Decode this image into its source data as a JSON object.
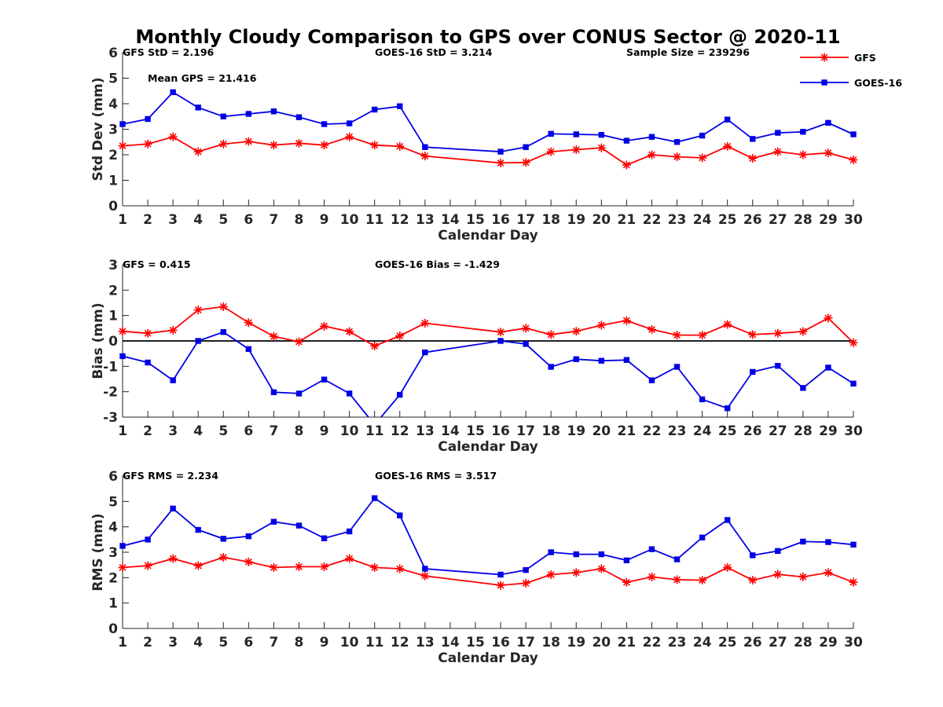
{
  "title": "Monthly Cloudy Comparison to GPS over CONUS Sector @ 2020-11",
  "legend": {
    "placement": "top-right",
    "entries": [
      {
        "name": "GFS",
        "color": "#ff0000",
        "marker": "asterisk"
      },
      {
        "name": "GOES-16",
        "color": "#0000e6",
        "marker": "square"
      }
    ]
  },
  "chart_data": [
    {
      "type": "line",
      "xlabel": "Calendar Day",
      "ylabel": "Std Dev (mm)",
      "xlim": [
        1,
        30
      ],
      "ylim": [
        0,
        6
      ],
      "yticks": [
        0,
        1,
        2,
        3,
        4,
        5,
        6
      ],
      "grid": false,
      "zero_line": false,
      "annotations": [
        "GFS StD = 2.196",
        "GOES-16 StD = 3.214",
        "Sample Size = 239296",
        "Mean GPS = 21.416"
      ],
      "x": [
        1,
        2,
        3,
        4,
        5,
        6,
        7,
        8,
        9,
        10,
        11,
        12,
        13,
        16,
        17,
        18,
        19,
        20,
        21,
        22,
        23,
        24,
        25,
        26,
        27,
        28,
        29,
        30
      ],
      "series": [
        {
          "name": "GFS",
          "values": [
            2.35,
            2.42,
            2.7,
            2.12,
            2.42,
            2.52,
            2.38,
            2.45,
            2.38,
            2.7,
            2.38,
            2.33,
            1.95,
            1.68,
            1.7,
            2.12,
            2.2,
            2.27,
            1.6,
            2.0,
            1.92,
            1.88,
            2.33,
            1.86,
            2.12,
            2.0,
            2.07,
            1.8
          ]
        },
        {
          "name": "GOES-16",
          "values": [
            3.2,
            3.4,
            4.45,
            3.85,
            3.5,
            3.6,
            3.7,
            3.47,
            3.2,
            3.23,
            3.77,
            3.9,
            2.3,
            2.12,
            2.3,
            2.82,
            2.8,
            2.78,
            2.55,
            2.7,
            2.5,
            2.75,
            3.38,
            2.62,
            2.86,
            2.9,
            3.25,
            2.8
          ]
        }
      ]
    },
    {
      "type": "line",
      "xlabel": "Calendar Day",
      "ylabel": "Bias (mm)",
      "xlim": [
        1,
        30
      ],
      "ylim": [
        -3,
        3
      ],
      "yticks": [
        -3,
        -2,
        -1,
        0,
        1,
        2,
        3
      ],
      "grid": false,
      "zero_line": true,
      "annotations": [
        "GFS = 0.415",
        "GOES-16 Bias = -1.429"
      ],
      "x": [
        1,
        2,
        3,
        4,
        5,
        6,
        7,
        8,
        9,
        10,
        11,
        12,
        13,
        16,
        17,
        18,
        19,
        20,
        21,
        22,
        23,
        24,
        25,
        26,
        27,
        28,
        29,
        30
      ],
      "series": [
        {
          "name": "GFS",
          "values": [
            0.38,
            0.3,
            0.42,
            1.22,
            1.35,
            0.72,
            0.18,
            -0.03,
            0.58,
            0.37,
            -0.2,
            0.2,
            0.7,
            0.35,
            0.5,
            0.25,
            0.38,
            0.62,
            0.8,
            0.45,
            0.23,
            0.23,
            0.65,
            0.25,
            0.3,
            0.37,
            0.9,
            -0.07
          ]
        },
        {
          "name": "GOES-16",
          "values": [
            -0.6,
            -0.85,
            -1.55,
            0.0,
            0.35,
            -0.32,
            -2.02,
            -2.07,
            -1.52,
            -2.07,
            -3.3,
            -2.12,
            -0.45,
            0.0,
            -0.12,
            -1.02,
            -0.72,
            -0.78,
            -0.75,
            -1.55,
            -1.02,
            -2.3,
            -2.65,
            -1.22,
            -0.98,
            -1.85,
            -1.05,
            -1.68
          ]
        }
      ]
    },
    {
      "type": "line",
      "xlabel": "Calendar Day",
      "ylabel": "RMS (mm)",
      "xlim": [
        1,
        30
      ],
      "ylim": [
        0,
        6
      ],
      "yticks": [
        0,
        1,
        2,
        3,
        4,
        5,
        6
      ],
      "grid": false,
      "zero_line": false,
      "annotations": [
        "GFS RMS = 2.234",
        "GOES-16 RMS = 3.517"
      ],
      "x": [
        1,
        2,
        3,
        4,
        5,
        6,
        7,
        8,
        9,
        10,
        11,
        12,
        13,
        16,
        17,
        18,
        19,
        20,
        21,
        22,
        23,
        24,
        25,
        26,
        27,
        28,
        29,
        30
      ],
      "series": [
        {
          "name": "GFS",
          "values": [
            2.4,
            2.47,
            2.75,
            2.47,
            2.8,
            2.62,
            2.4,
            2.43,
            2.43,
            2.75,
            2.4,
            2.35,
            2.07,
            1.7,
            1.78,
            2.12,
            2.2,
            2.35,
            1.82,
            2.03,
            1.92,
            1.9,
            2.4,
            1.9,
            2.13,
            2.03,
            2.2,
            1.82
          ]
        },
        {
          "name": "GOES-16",
          "values": [
            3.25,
            3.5,
            4.72,
            3.88,
            3.53,
            3.63,
            4.2,
            4.05,
            3.55,
            3.82,
            5.13,
            4.45,
            2.35,
            2.12,
            2.3,
            3.0,
            2.92,
            2.92,
            2.68,
            3.12,
            2.72,
            3.58,
            4.27,
            2.88,
            3.05,
            3.42,
            3.4,
            3.3
          ]
        }
      ]
    }
  ]
}
